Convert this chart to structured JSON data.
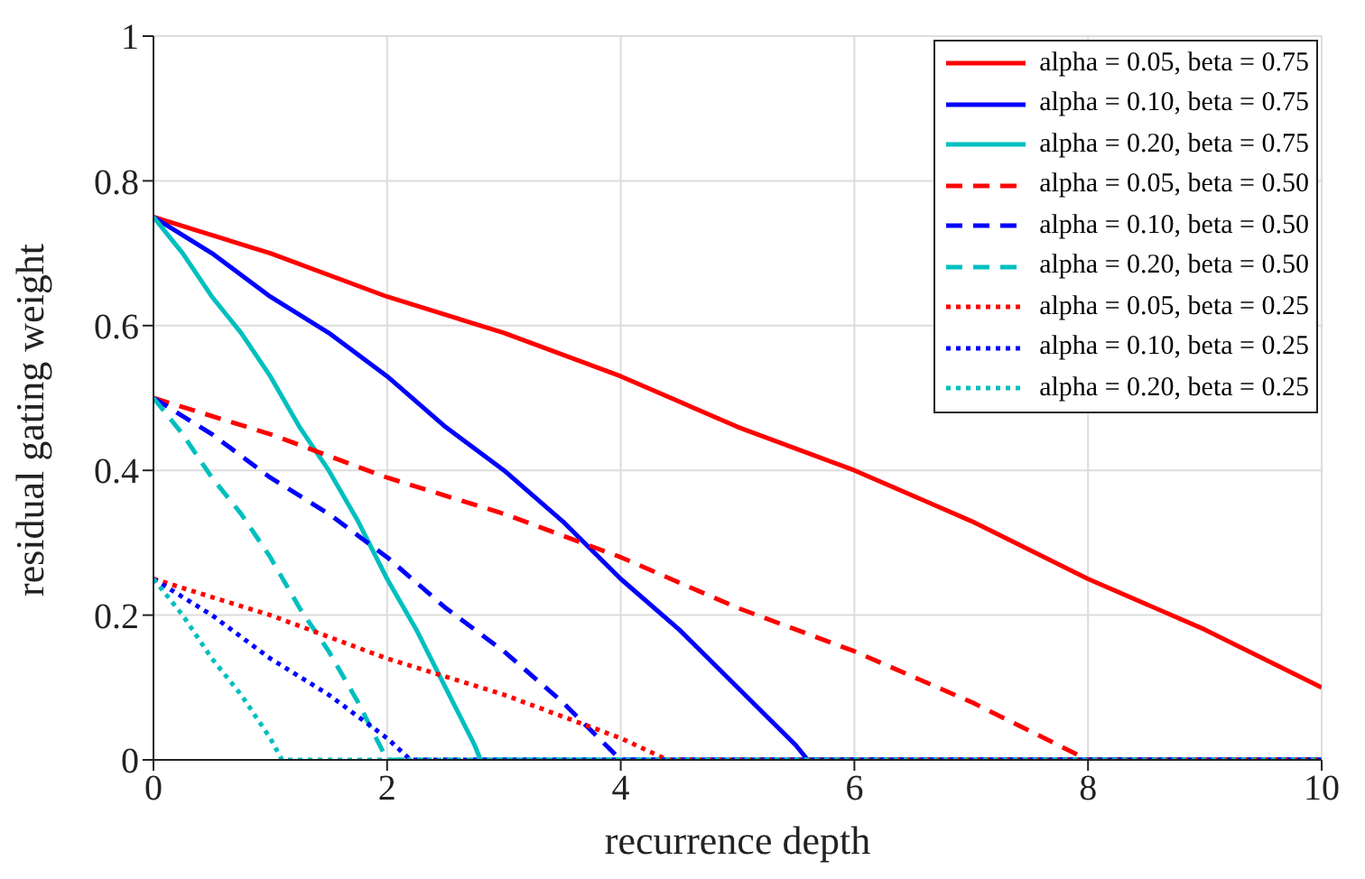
{
  "chart_data": {
    "type": "line",
    "xlabel": "recurrence depth",
    "ylabel": "residual gating weight",
    "xlim": [
      0,
      10
    ],
    "ylim": [
      0,
      1
    ],
    "xticks": [
      0,
      2,
      4,
      6,
      8,
      10
    ],
    "yticks": [
      0,
      0.2,
      0.4,
      0.6,
      0.8,
      1
    ],
    "grid": true,
    "legend": "top right",
    "marker": "none",
    "series": [
      {
        "name": "alpha = 0.05, beta = 0.75",
        "color": "#ff0000",
        "line_style": "solid",
        "x": [
          0,
          1,
          2,
          3,
          4,
          5,
          6,
          7,
          8,
          9,
          10
        ],
        "values": [
          0.75,
          0.7,
          0.64,
          0.59,
          0.53,
          0.46,
          0.4,
          0.33,
          0.25,
          0.18,
          0.1
        ]
      },
      {
        "name": "alpha = 0.10, beta = 0.75",
        "color": "#0000ff",
        "line_style": "solid",
        "x": [
          0,
          0.5,
          1,
          1.5,
          2,
          2.5,
          3,
          3.5,
          4,
          4.5,
          5,
          5.5,
          5.6,
          10
        ],
        "values": [
          0.75,
          0.7,
          0.64,
          0.59,
          0.53,
          0.46,
          0.4,
          0.33,
          0.25,
          0.18,
          0.1,
          0.02,
          0,
          0
        ]
      },
      {
        "name": "alpha = 0.20, beta = 0.75",
        "color": "#00bfbf",
        "line_style": "solid",
        "x": [
          0,
          0.25,
          0.5,
          0.75,
          1,
          1.25,
          1.5,
          1.75,
          2,
          2.25,
          2.5,
          2.75,
          2.8,
          10
        ],
        "values": [
          0.75,
          0.7,
          0.64,
          0.59,
          0.53,
          0.46,
          0.4,
          0.33,
          0.25,
          0.18,
          0.1,
          0.02,
          0,
          0
        ]
      },
      {
        "name": "alpha = 0.05, beta = 0.50",
        "color": "#ff0000",
        "line_style": "dashed",
        "x": [
          0,
          1,
          2,
          3,
          4,
          5,
          6,
          7,
          8,
          10
        ],
        "values": [
          0.5,
          0.45,
          0.39,
          0.34,
          0.28,
          0.21,
          0.15,
          0.08,
          0,
          0
        ]
      },
      {
        "name": "alpha = 0.10, beta = 0.50",
        "color": "#0000ff",
        "line_style": "dashed",
        "x": [
          0,
          0.5,
          1,
          1.5,
          2,
          2.5,
          3,
          3.5,
          4,
          10
        ],
        "values": [
          0.5,
          0.45,
          0.39,
          0.34,
          0.28,
          0.21,
          0.15,
          0.08,
          0,
          0
        ]
      },
      {
        "name": "alpha = 0.20, beta = 0.50",
        "color": "#00bfbf",
        "line_style": "dashed",
        "x": [
          0,
          0.25,
          0.5,
          0.75,
          1,
          1.25,
          1.5,
          1.75,
          2,
          10
        ],
        "values": [
          0.5,
          0.45,
          0.39,
          0.34,
          0.28,
          0.21,
          0.15,
          0.08,
          0,
          0
        ]
      },
      {
        "name": "alpha = 0.05, beta = 0.25",
        "color": "#ff0000",
        "line_style": "dotted",
        "x": [
          0,
          1,
          2,
          3,
          4,
          4.4,
          10
        ],
        "values": [
          0.25,
          0.2,
          0.14,
          0.09,
          0.03,
          0,
          0
        ]
      },
      {
        "name": "alpha = 0.10, beta = 0.25",
        "color": "#0000ff",
        "line_style": "dotted",
        "x": [
          0,
          0.5,
          1,
          1.5,
          2,
          2.2,
          10
        ],
        "values": [
          0.25,
          0.2,
          0.14,
          0.09,
          0.03,
          0,
          0
        ]
      },
      {
        "name": "alpha = 0.20, beta = 0.25",
        "color": "#00bfbf",
        "line_style": "dotted",
        "x": [
          0,
          0.25,
          0.5,
          0.75,
          1,
          1.1,
          10
        ],
        "values": [
          0.25,
          0.2,
          0.14,
          0.09,
          0.03,
          0,
          0
        ]
      }
    ]
  }
}
